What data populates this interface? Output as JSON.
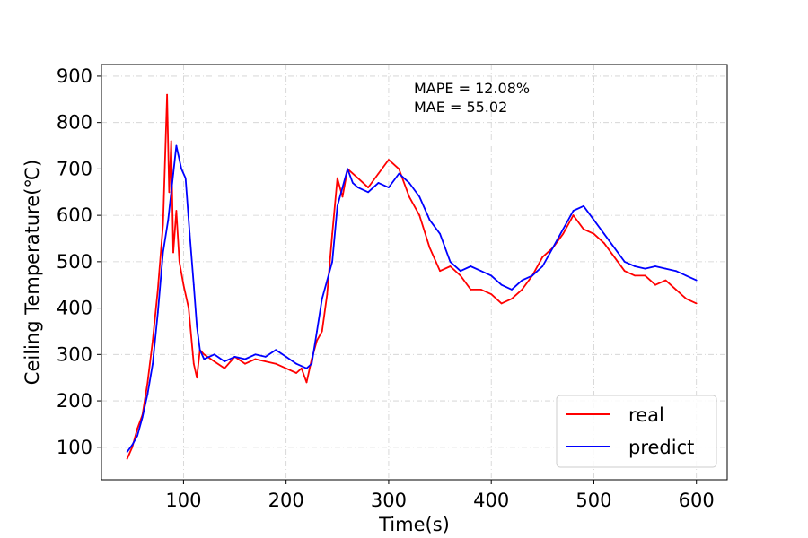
{
  "chart_data": {
    "type": "line",
    "title": "",
    "xlabel": "Time(s)",
    "ylabel": "Ceiling Temperature(℃)",
    "xlim": [
      20,
      630
    ],
    "ylim": [
      30,
      925
    ],
    "xticks": [
      100,
      200,
      300,
      400,
      500,
      600
    ],
    "yticks": [
      100,
      200,
      300,
      400,
      500,
      600,
      700,
      800,
      900
    ],
    "grid": true,
    "legend_position": "lower-right",
    "annotations": [
      "MAPE = 12.08%",
      "MAE = 55.02"
    ],
    "series": [
      {
        "name": "real",
        "color": "#ff0000",
        "x": [
          45,
          50,
          55,
          60,
          65,
          70,
          75,
          80,
          84,
          86,
          88,
          90,
          93,
          96,
          100,
          105,
          110,
          113,
          116,
          120,
          130,
          140,
          150,
          160,
          170,
          180,
          190,
          200,
          210,
          215,
          220,
          225,
          230,
          235,
          240,
          245,
          250,
          255,
          260,
          270,
          280,
          290,
          300,
          310,
          320,
          330,
          340,
          350,
          360,
          370,
          380,
          390,
          400,
          410,
          420,
          430,
          440,
          450,
          460,
          470,
          480,
          490,
          500,
          510,
          520,
          530,
          540,
          550,
          560,
          570,
          580,
          590,
          600
        ],
        "y": [
          75,
          100,
          140,
          170,
          240,
          330,
          440,
          580,
          860,
          650,
          760,
          520,
          610,
          500,
          450,
          400,
          280,
          250,
          310,
          300,
          285,
          270,
          295,
          280,
          290,
          285,
          280,
          270,
          260,
          270,
          240,
          290,
          330,
          350,
          430,
          560,
          680,
          640,
          700,
          680,
          660,
          690,
          720,
          700,
          640,
          600,
          530,
          480,
          490,
          470,
          440,
          440,
          430,
          410,
          420,
          440,
          470,
          510,
          530,
          560,
          600,
          570,
          560,
          540,
          510,
          480,
          470,
          470,
          450,
          460,
          440,
          420,
          410
        ]
      },
      {
        "name": "predict",
        "color": "#0000ff",
        "x": [
          45,
          50,
          55,
          60,
          65,
          70,
          75,
          80,
          85,
          90,
          93,
          95,
          98,
          102,
          106,
          110,
          113,
          116,
          120,
          130,
          140,
          150,
          160,
          170,
          180,
          190,
          200,
          210,
          220,
          225,
          230,
          235,
          240,
          245,
          250,
          255,
          260,
          265,
          270,
          280,
          290,
          300,
          310,
          320,
          330,
          340,
          350,
          360,
          370,
          380,
          390,
          400,
          410,
          420,
          430,
          440,
          450,
          460,
          470,
          480,
          490,
          500,
          510,
          520,
          530,
          540,
          550,
          560,
          570,
          580,
          590,
          600
        ],
        "y": [
          90,
          105,
          125,
          165,
          215,
          280,
          390,
          520,
          590,
          690,
          750,
          730,
          700,
          680,
          560,
          450,
          360,
          310,
          290,
          300,
          285,
          295,
          290,
          300,
          295,
          310,
          295,
          280,
          270,
          280,
          350,
          420,
          460,
          500,
          620,
          660,
          700,
          670,
          660,
          650,
          670,
          660,
          690,
          670,
          640,
          590,
          560,
          500,
          480,
          490,
          480,
          470,
          450,
          440,
          460,
          470,
          490,
          530,
          570,
          610,
          620,
          590,
          560,
          530,
          500,
          490,
          485,
          490,
          485,
          480,
          470,
          460
        ]
      }
    ]
  }
}
